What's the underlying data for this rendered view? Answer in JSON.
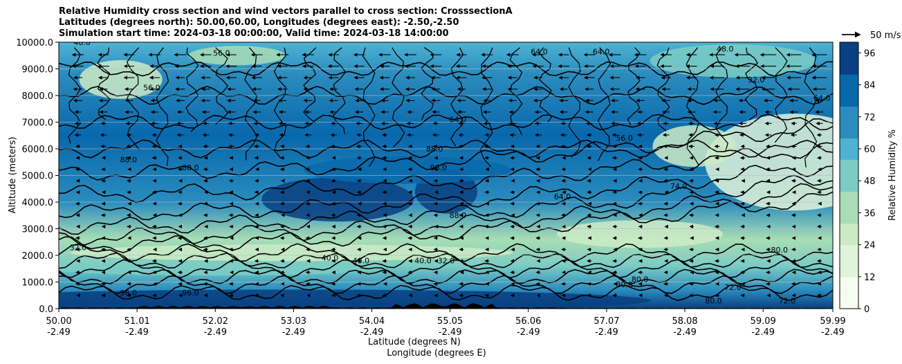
{
  "chart_data": {
    "type": "heatmap",
    "title_lines": [
      "Relative Humidity cross section and wind vectors parallel to cross section: CrosssectionA",
      "Latitudes (degrees north): 50.00,60.00, Longitudes (degrees east): -2.50,-2.50",
      "Simulation start time: 2024-03-18 00:00:00, Valid time: 2024-03-18 14:00:00"
    ],
    "xlabel": "Latitude (degrees N)",
    "xlabel2": "Longitude (degrees E)",
    "ylabel": "Altitude (meters)",
    "colorbar_label": "Relative Humidity %",
    "quiver_key": "50 m/s",
    "ylim": [
      0,
      10000
    ],
    "clim": [
      0,
      100
    ],
    "y_ticks": [
      "0.0",
      "1000.0",
      "2000.0",
      "3000.0",
      "4000.0",
      "5000.0",
      "6000.0",
      "7000.0",
      "8000.0",
      "9000.0",
      "10000.0"
    ],
    "x_ticks_lat": [
      "50.00",
      "51.01",
      "52.02",
      "53.03",
      "54.04",
      "55.05",
      "56.06",
      "57.07",
      "58.08",
      "59.09",
      "59.99"
    ],
    "x_ticks_lon": [
      "-2.49",
      "-2.49",
      "-2.49",
      "-2.49",
      "-2.49",
      "-2.49",
      "-2.49",
      "-2.49",
      "-2.49",
      "-2.49",
      "-2.49"
    ],
    "colorbar_ticks": [
      "0",
      "12",
      "24",
      "36",
      "48",
      "60",
      "72",
      "84",
      "96"
    ],
    "grid": "horizontal",
    "colormap": [
      "#f7fcf0",
      "#e0f3db",
      "#ccebc5",
      "#a8ddb5",
      "#7bccc4",
      "#4eb3d3",
      "#2b8cbe",
      "#0868ac",
      "#084081"
    ],
    "contour_labels": [
      {
        "lat": 50.3,
        "alt": 9900,
        "text": "48.0"
      },
      {
        "lat": 52.1,
        "alt": 9500,
        "text": "56.0"
      },
      {
        "lat": 57.0,
        "alt": 9550,
        "text": "64.0"
      },
      {
        "lat": 56.2,
        "alt": 9550,
        "text": "64.0"
      },
      {
        "lat": 58.6,
        "alt": 9650,
        "text": "48.0"
      },
      {
        "lat": 59.0,
        "alt": 8500,
        "text": "32.0"
      },
      {
        "lat": 59.85,
        "alt": 7800,
        "text": "64.0"
      },
      {
        "lat": 51.2,
        "alt": 8200,
        "text": "56.0"
      },
      {
        "lat": 55.15,
        "alt": 7000,
        "text": "64.0"
      },
      {
        "lat": 57.3,
        "alt": 6300,
        "text": "56.0"
      },
      {
        "lat": 50.9,
        "alt": 5500,
        "text": "88.0"
      },
      {
        "lat": 51.7,
        "alt": 5200,
        "text": "80.0"
      },
      {
        "lat": 54.9,
        "alt": 5200,
        "text": "96.0"
      },
      {
        "lat": 54.85,
        "alt": 5900,
        "text": "88.0"
      },
      {
        "lat": 55.15,
        "alt": 3400,
        "text": "88.0"
      },
      {
        "lat": 58.0,
        "alt": 4500,
        "text": "74.0"
      },
      {
        "lat": 56.5,
        "alt": 4100,
        "text": "64.0"
      },
      {
        "lat": 50.25,
        "alt": 2200,
        "text": "32.0"
      },
      {
        "lat": 53.9,
        "alt": 1700,
        "text": "40.0"
      },
      {
        "lat": 53.5,
        "alt": 1800,
        "text": "40.0"
      },
      {
        "lat": 55.0,
        "alt": 1700,
        "text": "32.0"
      },
      {
        "lat": 54.7,
        "alt": 1700,
        "text": "40.0"
      },
      {
        "lat": 50.9,
        "alt": 500,
        "text": "96.0"
      },
      {
        "lat": 51.7,
        "alt": 500,
        "text": "96.0"
      },
      {
        "lat": 57.3,
        "alt": 800,
        "text": "80.0"
      },
      {
        "lat": 57.5,
        "alt": 1000,
        "text": "80.0"
      },
      {
        "lat": 58.45,
        "alt": 200,
        "text": "80.0"
      },
      {
        "lat": 59.4,
        "alt": 200,
        "text": "72.0"
      },
      {
        "lat": 58.7,
        "alt": 700,
        "text": "72.0"
      },
      {
        "lat": 59.3,
        "alt": 2100,
        "text": "80.0"
      }
    ]
  }
}
